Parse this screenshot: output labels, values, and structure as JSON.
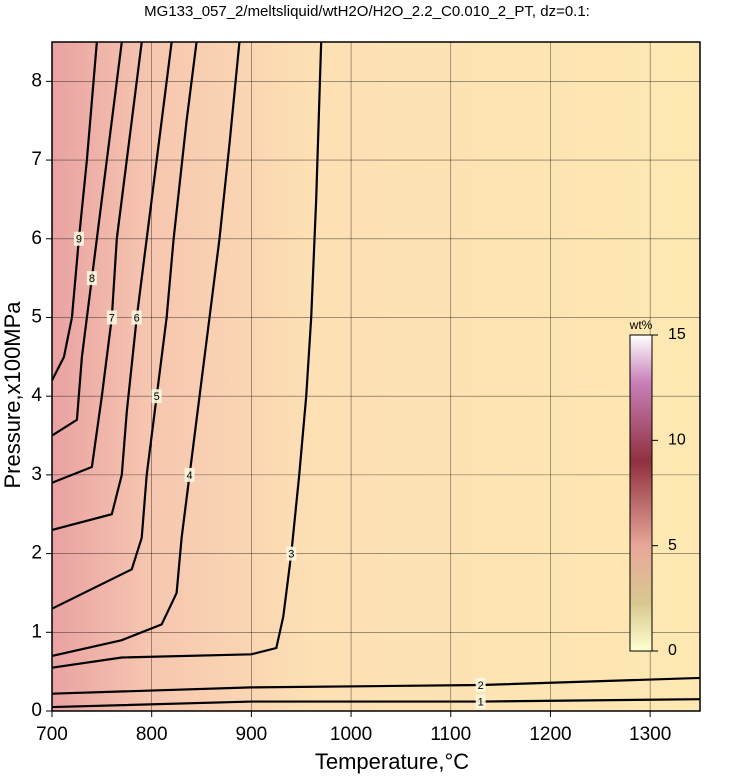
{
  "chart_data": {
    "type": "contour",
    "title": "MG133_057_2/meltsliquid/wtH2O/H2O_2.2_C0.010_2_PT, dz=0.1:",
    "xlabel": "Temperature,°C",
    "ylabel": "Pressure,x100MPa",
    "xlim": [
      700,
      1350
    ],
    "ylim": [
      0,
      8.5
    ],
    "xticks": [
      700,
      800,
      900,
      1000,
      1100,
      1200,
      1300
    ],
    "yticks": [
      0,
      1,
      2,
      3,
      4,
      5,
      6,
      7,
      8
    ],
    "grid": true,
    "colorbar": {
      "label": "wt%",
      "lim": [
        0,
        15
      ],
      "ticks": [
        0,
        5,
        10,
        15
      ]
    },
    "series": [
      {
        "name": "1",
        "color": "#000000",
        "x": [
          700,
          900,
          1130,
          1350
        ],
        "y": [
          0.05,
          0.12,
          0.12,
          0.15
        ]
      },
      {
        "name": "2",
        "color": "#000000",
        "x": [
          700,
          900,
          1130,
          1350
        ],
        "y": [
          0.22,
          0.3,
          0.33,
          0.42
        ]
      },
      {
        "name": "3",
        "color": "#000000",
        "x": [
          700,
          770,
          900,
          925,
          932,
          940,
          948,
          955,
          960,
          965,
          970
        ],
        "y": [
          0.55,
          0.68,
          0.72,
          0.8,
          1.2,
          2,
          3,
          4,
          5,
          6.5,
          8.5
        ]
      },
      {
        "name": "4",
        "color": "#000000",
        "x": [
          700,
          770,
          810,
          825,
          830,
          838,
          848,
          858,
          868,
          878,
          888
        ],
        "y": [
          0.7,
          0.9,
          1.1,
          1.5,
          2.2,
          3,
          4,
          5,
          6,
          7.2,
          8.5
        ]
      },
      {
        "name": "5",
        "color": "#000000",
        "x": [
          700,
          780,
          790,
          795,
          805,
          815,
          822,
          835,
          845
        ],
        "y": [
          1.3,
          1.8,
          2.2,
          3,
          4,
          5,
          6,
          7.5,
          8.5
        ]
      },
      {
        "name": "6",
        "color": "#000000",
        "x": [
          700,
          760,
          770,
          775,
          785,
          795,
          810,
          820
        ],
        "y": [
          2.3,
          2.5,
          3,
          3.8,
          5,
          6,
          7.5,
          8.5
        ]
      },
      {
        "name": "7",
        "color": "#000000",
        "x": [
          700,
          740,
          750,
          760,
          765,
          775,
          790
        ],
        "y": [
          2.9,
          3.1,
          4,
          5,
          6,
          7,
          8.5
        ]
      },
      {
        "name": "8",
        "color": "#000000",
        "x": [
          700,
          725,
          730,
          740,
          750,
          760,
          770
        ],
        "y": [
          3.5,
          3.7,
          4.5,
          5.5,
          6.5,
          7.5,
          8.5
        ]
      },
      {
        "name": "9",
        "color": "#000000",
        "x": [
          700,
          712,
          720,
          727,
          735,
          745
        ],
        "y": [
          4.2,
          4.5,
          5.0,
          6,
          7,
          8.5
        ]
      }
    ]
  }
}
